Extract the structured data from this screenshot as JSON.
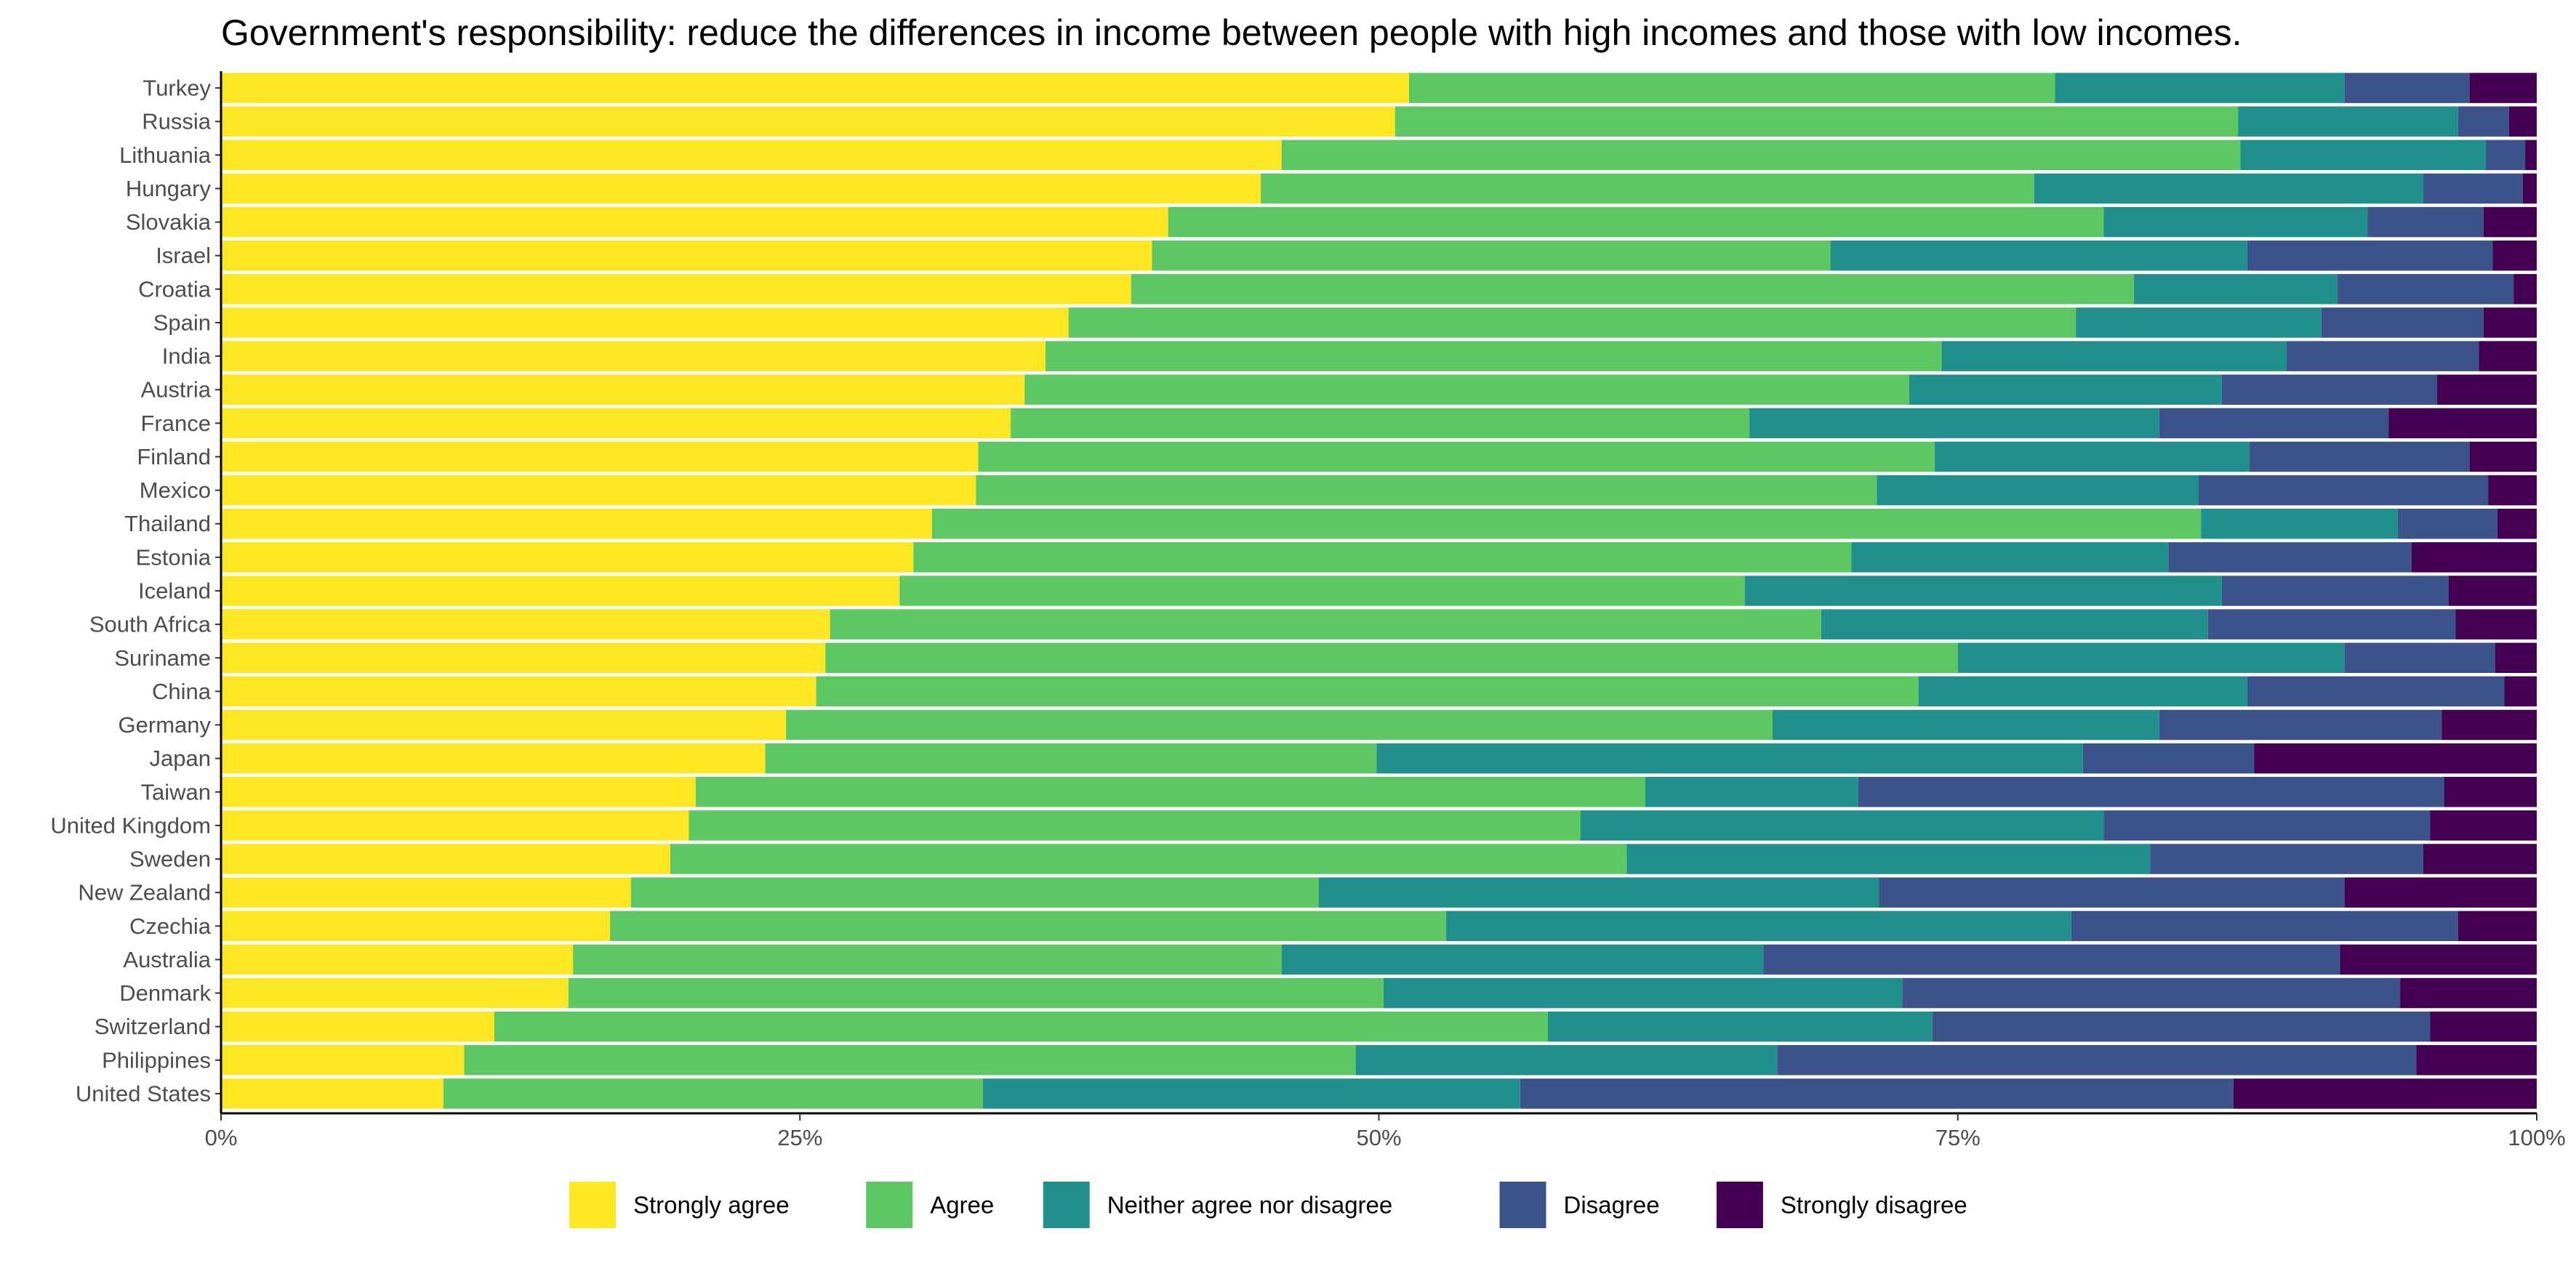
{
  "chart_data": {
    "type": "bar",
    "orientation": "horizontal",
    "stacked": "percent",
    "title": "Government's responsibility: reduce the differences in income between people with high incomes and those with low incomes.",
    "xlabel": "",
    "ylabel": "",
    "xlim": [
      0,
      100
    ],
    "x_ticks": [
      "0%",
      "25%",
      "50%",
      "75%",
      "100%"
    ],
    "x_tick_values": [
      0,
      25,
      50,
      75,
      100
    ],
    "legend_position": "bottom",
    "grid": false,
    "categories": [
      "Turkey",
      "Russia",
      "Lithuania",
      "Hungary",
      "Slovakia",
      "Israel",
      "Croatia",
      "Spain",
      "India",
      "Austria",
      "France",
      "Finland",
      "Mexico",
      "Thailand",
      "Estonia",
      "Iceland",
      "South Africa",
      "Suriname",
      "China",
      "Germany",
      "Japan",
      "Taiwan",
      "United Kingdom",
      "Sweden",
      "New Zealand",
      "Czechia",
      "Australia",
      "Denmark",
      "Switzerland",
      "Philippines",
      "United States"
    ],
    "series": [
      {
        "name": "Strongly agree",
        "color": "#FDE725",
        "values": [
          51.3,
          50.7,
          45.8,
          44.9,
          40.9,
          40.2,
          39.3,
          36.6,
          35.6,
          34.7,
          34.1,
          32.7,
          32.6,
          30.7,
          29.9,
          29.3,
          26.3,
          26.1,
          25.7,
          24.4,
          23.5,
          20.5,
          20.2,
          19.4,
          17.7,
          16.8,
          15.2,
          15.0,
          11.8,
          10.5,
          9.6
        ]
      },
      {
        "name": "Agree",
        "color": "#5DC863",
        "values": [
          27.9,
          36.4,
          41.4,
          33.4,
          40.4,
          29.3,
          43.3,
          43.5,
          38.7,
          38.2,
          31.9,
          41.3,
          38.9,
          54.8,
          40.5,
          36.5,
          42.8,
          48.9,
          47.6,
          42.6,
          26.4,
          41.0,
          38.5,
          41.3,
          29.7,
          36.1,
          30.6,
          35.2,
          45.5,
          38.5,
          23.3
        ]
      },
      {
        "name": "Neither agree nor disagree",
        "color": "#21908C",
        "values": [
          12.5,
          9.5,
          10.6,
          16.8,
          11.4,
          18.0,
          8.8,
          10.6,
          14.9,
          13.5,
          17.7,
          13.6,
          13.9,
          8.5,
          13.7,
          20.6,
          16.7,
          16.7,
          14.2,
          16.7,
          30.5,
          9.2,
          22.6,
          22.6,
          24.2,
          27.0,
          20.8,
          22.4,
          16.6,
          18.2,
          23.2
        ]
      },
      {
        "name": "Disagree",
        "color": "#3B528B",
        "values": [
          5.4,
          2.2,
          1.7,
          4.3,
          5.0,
          10.6,
          7.6,
          7.0,
          8.3,
          9.3,
          9.9,
          9.5,
          12.5,
          4.3,
          10.5,
          9.8,
          10.7,
          6.5,
          11.1,
          12.2,
          7.4,
          25.3,
          14.1,
          11.8,
          20.1,
          16.7,
          24.9,
          21.5,
          21.5,
          27.6,
          30.8
        ]
      },
      {
        "name": "Strongly disagree",
        "color": "#440154",
        "values": [
          2.9,
          1.2,
          0.5,
          0.6,
          2.3,
          1.9,
          1.0,
          2.3,
          2.5,
          4.3,
          6.4,
          2.9,
          2.1,
          1.7,
          5.4,
          3.8,
          3.5,
          1.8,
          1.4,
          4.1,
          12.2,
          4.0,
          4.6,
          4.9,
          8.3,
          3.4,
          8.5,
          5.9,
          4.6,
          5.2,
          13.1
        ]
      }
    ]
  }
}
